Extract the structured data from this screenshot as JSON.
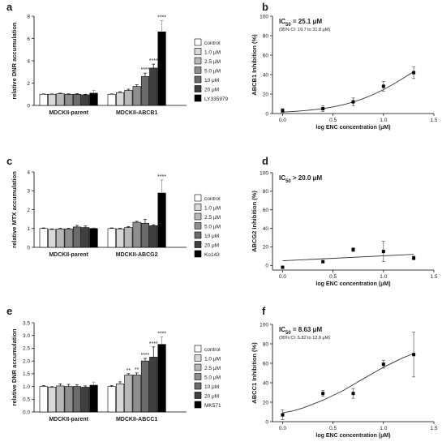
{
  "chart_data": [
    {
      "panel": "a",
      "type": "bar",
      "ylabel": "relative DNR accumulation",
      "ylim": [
        0,
        8
      ],
      "yticks": [
        "0",
        "2",
        "4",
        "6",
        "8"
      ],
      "groups": [
        "MDCKII-parent",
        "MDCKII-ABCB1"
      ],
      "legend": [
        "control",
        "1.0 μM",
        "2.5 μM",
        "5.0 μM",
        "10 μM",
        "20 μM",
        "LY335979"
      ],
      "colors": [
        "#ffffff",
        "#d9d9d9",
        "#b8b8b8",
        "#8f8f8f",
        "#6b6b6b",
        "#3f3f3f",
        "#000000"
      ],
      "values": [
        [
          1.0,
          1.0,
          1.05,
          1.0,
          1.0,
          0.95,
          1.1
        ],
        [
          1.0,
          1.15,
          1.35,
          1.7,
          2.6,
          3.35,
          6.6
        ]
      ],
      "errors": [
        [
          0.03,
          0.03,
          0.05,
          0.04,
          0.05,
          0.05,
          0.25
        ],
        [
          0.03,
          0.08,
          0.1,
          0.15,
          0.3,
          0.35,
          1.0
        ]
      ],
      "significance": [
        [
          "",
          "",
          "",
          "",
          "",
          "",
          ""
        ],
        [
          "",
          "",
          "",
          "",
          "****",
          "****",
          "****"
        ]
      ]
    },
    {
      "panel": "b",
      "type": "scatter",
      "annotation_main": "IC50 = 25.1 μM",
      "annotation_ci": "(95% CI: 19.7 to 31.8 μM)",
      "xlabel": "log ENC concentration (μM)",
      "ylabel": "ABCB1 Inhibition (%)",
      "xlim": [
        -0.1,
        1.5
      ],
      "ylim": [
        0,
        100
      ],
      "xticks": [
        "0.0",
        "0.5",
        "1.0",
        "1.5"
      ],
      "yticks": [
        "0",
        "20",
        "40",
        "60",
        "80",
        "100"
      ],
      "x": [
        0.0,
        0.4,
        0.7,
        1.0,
        1.3
      ],
      "y": [
        3,
        5,
        12,
        28,
        42
      ],
      "yerr": [
        2,
        3,
        4,
        5,
        6
      ],
      "fit_x": [
        0.0,
        0.1,
        0.2,
        0.3,
        0.4,
        0.5,
        0.6,
        0.7,
        0.8,
        0.9,
        1.0,
        1.1,
        1.2,
        1.3
      ],
      "fit_y": [
        1.5,
        2.0,
        2.8,
        3.8,
        5.0,
        6.8,
        9.0,
        11.8,
        15.3,
        19.6,
        24.6,
        30.3,
        36.6,
        43.0
      ]
    },
    {
      "panel": "c",
      "type": "bar",
      "ylabel": "relative MTX accumulation",
      "ylim": [
        0,
        4
      ],
      "yticks": [
        "0",
        "1",
        "2",
        "3",
        "4"
      ],
      "groups": [
        "MDCKII-parent",
        "MDCKII-ABCG2"
      ],
      "legend": [
        "control",
        "1.0 μM",
        "2.5 μM",
        "5.0 μM",
        "10 μM",
        "20 μM",
        "Ko143"
      ],
      "colors": [
        "#ffffff",
        "#d9d9d9",
        "#b8b8b8",
        "#8f8f8f",
        "#6b6b6b",
        "#3f3f3f",
        "#000000"
      ],
      "values": [
        [
          1.0,
          0.95,
          0.98,
          0.98,
          1.08,
          1.05,
          1.0
        ],
        [
          1.0,
          0.98,
          1.05,
          1.33,
          1.28,
          1.15,
          2.88
        ]
      ],
      "errors": [
        [
          0.03,
          0.03,
          0.03,
          0.03,
          0.08,
          0.08,
          0.03
        ],
        [
          0.03,
          0.03,
          0.05,
          0.05,
          0.2,
          0.05,
          0.7
        ]
      ],
      "significance": [
        [
          "",
          "",
          "",
          "",
          "",
          "",
          ""
        ],
        [
          "",
          "",
          "",
          "",
          "",
          "",
          "****"
        ]
      ]
    },
    {
      "panel": "d",
      "type": "scatter",
      "annotation_main": "IC50 > 20.0 μM",
      "annotation_ci": "",
      "xlabel": "log ENC concentration (μM)",
      "ylabel": "ABCG2 Inhibition (%)",
      "xlim": [
        -0.1,
        1.5
      ],
      "ylim": [
        -5,
        100
      ],
      "xticks": [
        "0.0",
        "0.5",
        "1.0",
        "1.5"
      ],
      "yticks": [
        "0",
        "20",
        "40",
        "60",
        "80",
        "100"
      ],
      "x": [
        0.0,
        0.4,
        0.7,
        1.0,
        1.3
      ],
      "y": [
        -2,
        4,
        17,
        15,
        8
      ],
      "yerr": [
        1,
        1,
        2,
        11,
        2
      ],
      "fit_x": [
        0.0,
        1.3
      ],
      "fit_y": [
        5,
        12
      ]
    },
    {
      "panel": "e",
      "type": "bar",
      "ylabel": "relative DNR accumulation",
      "ylim": [
        0,
        3.5
      ],
      "yticks": [
        "0.0",
        "0.5",
        "1.0",
        "1.5",
        "2.0",
        "2.5",
        "3.0",
        "3.5"
      ],
      "groups": [
        "MDCKII-parent",
        "MDCKII-ABCC1"
      ],
      "legend": [
        "control",
        "1.0 μM",
        "2.5 μM",
        "5.0 μM",
        "10 μM",
        "20 μM",
        "MK571"
      ],
      "colors": [
        "#ffffff",
        "#d9d9d9",
        "#b8b8b8",
        "#8f8f8f",
        "#6b6b6b",
        "#3f3f3f",
        "#000000"
      ],
      "values": [
        [
          1.0,
          0.97,
          1.02,
          1.0,
          1.0,
          0.97,
          1.05
        ],
        [
          1.0,
          1.1,
          1.45,
          1.45,
          2.0,
          2.15,
          2.65
        ]
      ],
      "errors": [
        [
          0.03,
          0.02,
          0.08,
          0.08,
          0.06,
          0.05,
          0.12
        ],
        [
          0.03,
          0.08,
          0.05,
          0.08,
          0.1,
          0.4,
          0.3
        ]
      ],
      "significance": [
        [
          "",
          "",
          "",
          "",
          "",
          "",
          ""
        ],
        [
          "",
          "",
          "**",
          "**",
          "****",
          "****",
          "****"
        ]
      ]
    },
    {
      "panel": "f",
      "type": "scatter",
      "annotation_main": "IC50 = 8.63 μM",
      "annotation_ci": "(95% CI: 5.82 to 12.8 μM)",
      "xlabel": "log ENC concentration (μM)",
      "ylabel": "ABCC1 Inhibition (%)",
      "xlim": [
        -0.1,
        1.5
      ],
      "ylim": [
        0,
        100
      ],
      "xticks": [
        "0.0",
        "0.5",
        "1.0",
        "1.5"
      ],
      "yticks": [
        "0",
        "20",
        "40",
        "60",
        "80",
        "100"
      ],
      "x": [
        0.0,
        0.4,
        0.7,
        1.0,
        1.3
      ],
      "y": [
        7,
        29,
        29,
        59,
        69
      ],
      "yerr": [
        5,
        3,
        5,
        4,
        23
      ],
      "fit_x": [
        0.0,
        0.1,
        0.2,
        0.3,
        0.4,
        0.5,
        0.6,
        0.7,
        0.8,
        0.9,
        1.0,
        1.1,
        1.2,
        1.3
      ],
      "fit_y": [
        9,
        11,
        14,
        18,
        22,
        27,
        32,
        38,
        44,
        50,
        56,
        61,
        66,
        70
      ]
    }
  ]
}
